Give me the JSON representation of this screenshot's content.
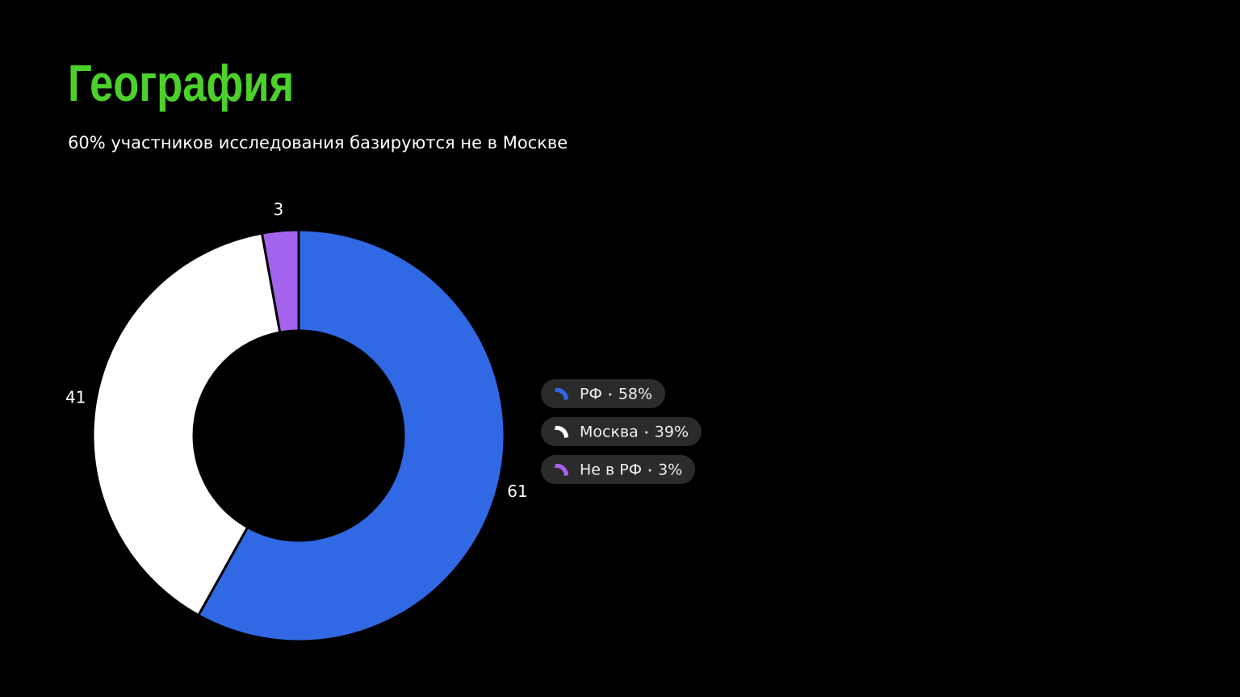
{
  "chart_data": {
    "type": "donut",
    "title": "География",
    "subtitle": "60% участников исследования базируются не в Москве",
    "categories": [
      "РФ",
      "Москва",
      "Не в РФ"
    ],
    "values": [
      61,
      41,
      3
    ],
    "colors": [
      "#3168e3",
      "#ffffff",
      "#a463ec"
    ],
    "shares": [
      58,
      39,
      3
    ],
    "share_labels": [
      "58%",
      "39%",
      "3%"
    ]
  }
}
